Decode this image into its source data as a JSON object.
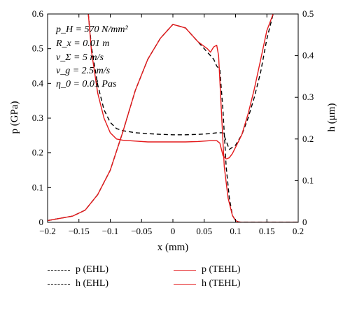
{
  "chart_data": {
    "type": "line",
    "xlabel": "x (mm)",
    "ylabel_left": "p (GPa)",
    "ylabel_right": "h (μm)",
    "xlim": [
      -0.2,
      0.2
    ],
    "ylim_left": [
      0,
      0.6
    ],
    "ylim_right": [
      0,
      0.5
    ],
    "x_ticks": [
      "−0.2",
      "−0.15",
      "−0.1",
      "−0.05",
      "0",
      "0.05",
      "0.1",
      "0.15",
      "0.2"
    ],
    "y_ticks_left": [
      "0",
      "0.1",
      "0.2",
      "0.3",
      "0.4",
      "0.5",
      "0.6"
    ],
    "y_ticks_right": [
      "0",
      "0.1",
      "0.2",
      "0.3",
      "0.4",
      "0.5"
    ],
    "grid": false,
    "legend_position": "bottom",
    "annotations": [
      "p_H = 570 N/mm²",
      "R_x = 0.01 m",
      "v_Σ = 5 m/s",
      "v_g = 2.5 m/s",
      "η_0 = 0.01 Pas"
    ],
    "series": [
      {
        "name": "p (EHL)",
        "axis": "left",
        "color": "#000000",
        "style": "dashed",
        "x": [
          -0.2,
          -0.16,
          -0.14,
          -0.12,
          -0.1,
          -0.08,
          -0.06,
          -0.04,
          -0.02,
          0.0,
          0.02,
          0.04,
          0.055,
          0.065,
          0.07,
          0.075,
          0.08,
          0.085,
          0.09,
          0.095,
          0.1,
          0.105,
          0.11,
          0.12,
          0.2
        ],
        "y": [
          0.005,
          0.018,
          0.035,
          0.08,
          0.15,
          0.26,
          0.38,
          0.47,
          0.53,
          0.57,
          0.56,
          0.52,
          0.49,
          0.47,
          0.45,
          0.44,
          0.32,
          0.16,
          0.07,
          0.02,
          0.005,
          0.001,
          0.0,
          0.0,
          0.0
        ]
      },
      {
        "name": "h (EHL)",
        "axis": "right",
        "color": "#000000",
        "style": "dashed",
        "x": [
          -0.135,
          -0.13,
          -0.12,
          -0.11,
          -0.1,
          -0.09,
          -0.08,
          -0.06,
          -0.04,
          -0.02,
          0.0,
          0.02,
          0.04,
          0.06,
          0.07,
          0.08,
          0.085,
          0.09,
          0.1,
          0.11,
          0.12,
          0.13,
          0.14,
          0.15,
          0.16
        ],
        "y": [
          0.5,
          0.42,
          0.33,
          0.27,
          0.24,
          0.225,
          0.22,
          0.215,
          0.213,
          0.211,
          0.21,
          0.21,
          0.211,
          0.213,
          0.215,
          0.215,
          0.195,
          0.175,
          0.185,
          0.21,
          0.25,
          0.3,
          0.36,
          0.44,
          0.5
        ]
      },
      {
        "name": "p (TEHL)",
        "axis": "left",
        "color": "#e41a1c",
        "style": "solid",
        "x": [
          -0.2,
          -0.16,
          -0.14,
          -0.12,
          -0.1,
          -0.08,
          -0.06,
          -0.04,
          -0.02,
          0.0,
          0.02,
          0.04,
          0.055,
          0.06,
          0.065,
          0.07,
          0.073,
          0.078,
          0.082,
          0.088,
          0.095,
          0.1,
          0.105,
          0.11,
          0.12,
          0.2
        ],
        "y": [
          0.005,
          0.018,
          0.035,
          0.08,
          0.15,
          0.26,
          0.38,
          0.47,
          0.53,
          0.57,
          0.56,
          0.52,
          0.5,
          0.49,
          0.505,
          0.51,
          0.48,
          0.3,
          0.16,
          0.07,
          0.02,
          0.005,
          0.001,
          0.0,
          0.0,
          0.0
        ]
      },
      {
        "name": "h (TEHL)",
        "axis": "right",
        "color": "#e41a1c",
        "style": "solid",
        "x": [
          -0.135,
          -0.13,
          -0.12,
          -0.11,
          -0.1,
          -0.09,
          -0.08,
          -0.06,
          -0.04,
          -0.02,
          0.0,
          0.02,
          0.04,
          0.06,
          0.07,
          0.075,
          0.08,
          0.085,
          0.09,
          0.095,
          0.1,
          0.11,
          0.12,
          0.13,
          0.14,
          0.15,
          0.16
        ],
        "y": [
          0.5,
          0.41,
          0.31,
          0.25,
          0.215,
          0.2,
          0.197,
          0.195,
          0.193,
          0.193,
          0.193,
          0.193,
          0.194,
          0.196,
          0.196,
          0.19,
          0.16,
          0.152,
          0.155,
          0.165,
          0.18,
          0.21,
          0.26,
          0.32,
          0.39,
          0.46,
          0.5
        ]
      }
    ]
  }
}
